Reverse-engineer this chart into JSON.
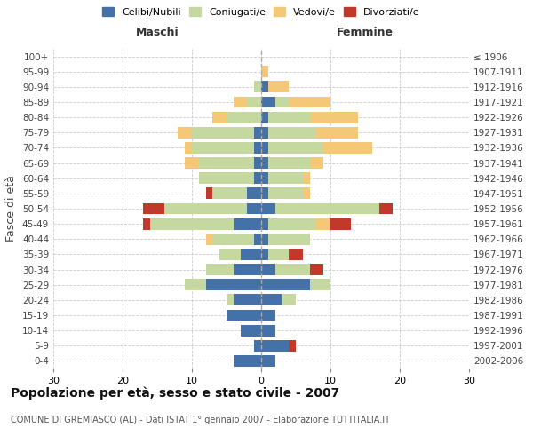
{
  "age_groups": [
    "0-4",
    "5-9",
    "10-14",
    "15-19",
    "20-24",
    "25-29",
    "30-34",
    "35-39",
    "40-44",
    "45-49",
    "50-54",
    "55-59",
    "60-64",
    "65-69",
    "70-74",
    "75-79",
    "80-84",
    "85-89",
    "90-94",
    "95-99",
    "100+"
  ],
  "birth_years": [
    "2002-2006",
    "1997-2001",
    "1992-1996",
    "1987-1991",
    "1982-1986",
    "1977-1981",
    "1972-1976",
    "1967-1971",
    "1962-1966",
    "1957-1961",
    "1952-1956",
    "1947-1951",
    "1942-1946",
    "1937-1941",
    "1932-1936",
    "1927-1931",
    "1922-1926",
    "1917-1921",
    "1912-1916",
    "1907-1911",
    "≤ 1906"
  ],
  "male": {
    "celibi": [
      4,
      1,
      3,
      5,
      4,
      8,
      4,
      3,
      1,
      4,
      2,
      2,
      1,
      1,
      1,
      1,
      0,
      0,
      0,
      0,
      0
    ],
    "coniugati": [
      0,
      0,
      0,
      0,
      1,
      3,
      4,
      3,
      6,
      12,
      12,
      5,
      8,
      8,
      9,
      9,
      5,
      2,
      1,
      0,
      0
    ],
    "vedovi": [
      0,
      0,
      0,
      0,
      0,
      0,
      0,
      0,
      1,
      0,
      0,
      0,
      0,
      2,
      1,
      2,
      2,
      2,
      0,
      0,
      0
    ],
    "divorziati": [
      0,
      0,
      0,
      0,
      0,
      0,
      0,
      0,
      0,
      1,
      3,
      1,
      0,
      0,
      0,
      0,
      0,
      0,
      0,
      0,
      0
    ]
  },
  "female": {
    "nubili": [
      2,
      4,
      2,
      2,
      3,
      7,
      2,
      1,
      1,
      1,
      2,
      1,
      1,
      1,
      1,
      1,
      1,
      2,
      1,
      0,
      0
    ],
    "coniugate": [
      0,
      0,
      0,
      0,
      2,
      3,
      5,
      3,
      6,
      7,
      15,
      5,
      5,
      6,
      8,
      7,
      6,
      2,
      0,
      0,
      0
    ],
    "vedove": [
      0,
      0,
      0,
      0,
      0,
      0,
      0,
      0,
      0,
      2,
      0,
      1,
      1,
      2,
      7,
      6,
      7,
      6,
      3,
      1,
      0
    ],
    "divorziate": [
      0,
      1,
      0,
      0,
      0,
      0,
      2,
      2,
      0,
      3,
      2,
      0,
      0,
      0,
      0,
      0,
      0,
      0,
      0,
      0,
      0
    ]
  },
  "colors": {
    "celibi": "#4472a8",
    "coniugati": "#c5d8a0",
    "vedovi": "#f5c878",
    "divorziati": "#c0392b"
  },
  "xlim": 30,
  "title": "Popolazione per età, sesso e stato civile - 2007",
  "subtitle": "COMUNE DI GREMIASCO (AL) - Dati ISTAT 1° gennaio 2007 - Elaborazione TUTTITALIA.IT",
  "xlabel_left": "Maschi",
  "xlabel_right": "Femmine",
  "ylabel_left": "Fasce di età",
  "legend_labels": [
    "Celibi/Nubili",
    "Coniugati/e",
    "Vedovi/e",
    "Divorziati/e"
  ],
  "bg_color": "#ffffff",
  "grid_color": "#cccccc"
}
